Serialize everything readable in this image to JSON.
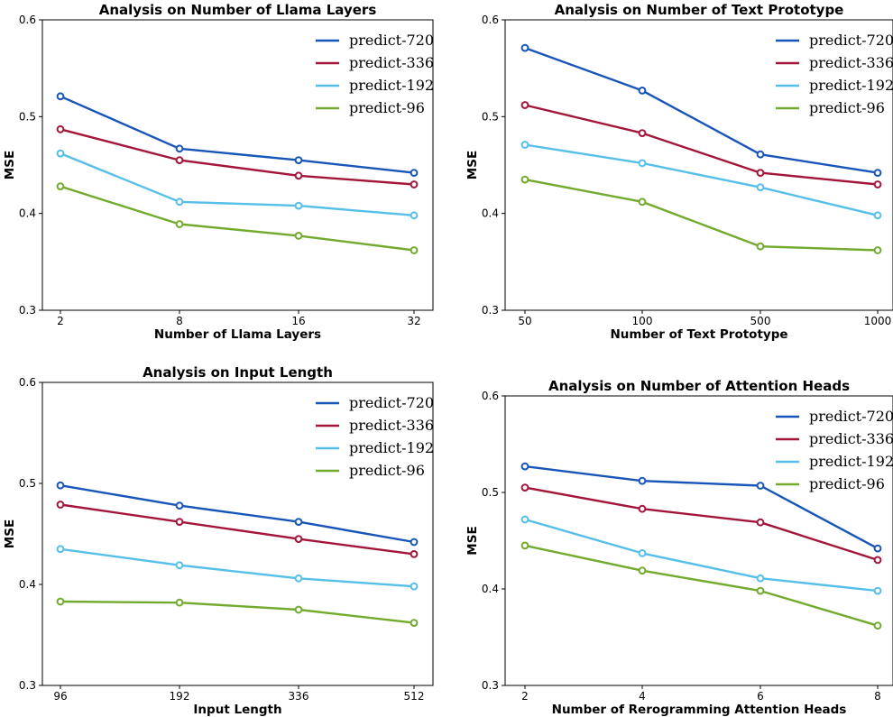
{
  "colors": {
    "predict-720": "#1756b8",
    "predict-336": "#a3163a",
    "predict-192": "#55bfe9",
    "predict-96": "#72aa2e"
  },
  "chart_data": [
    {
      "type": "line",
      "title": "Analysis on Number of Llama Layers",
      "xlabel": "Number of Llama Layers",
      "ylabel": "MSE",
      "categories": [
        "2",
        "8",
        "16",
        "32"
      ],
      "yticks": [
        "0.3",
        "0.4",
        "0.5",
        "0.6"
      ],
      "ylim": [
        0.3,
        0.6
      ],
      "grid": false,
      "legend": "top-right",
      "series": [
        {
          "name": "predict-720",
          "values": [
            0.521,
            0.467,
            0.455,
            0.442
          ]
        },
        {
          "name": "predict-336",
          "values": [
            0.487,
            0.455,
            0.439,
            0.43
          ]
        },
        {
          "name": "predict-192",
          "values": [
            0.462,
            0.412,
            0.408,
            0.398
          ]
        },
        {
          "name": "predict-96",
          "values": [
            0.428,
            0.389,
            0.377,
            0.362
          ]
        }
      ]
    },
    {
      "type": "line",
      "title": "Analysis on Number of Text Prototype",
      "xlabel": "Number of Text Prototype",
      "ylabel": "MSE",
      "categories": [
        "50",
        "100",
        "500",
        "1000"
      ],
      "yticks": [
        "0.3",
        "0.4",
        "0.5",
        "0.6"
      ],
      "ylim": [
        0.3,
        0.6
      ],
      "grid": false,
      "legend": "top-right",
      "series": [
        {
          "name": "predict-720",
          "values": [
            0.571,
            0.527,
            0.461,
            0.442
          ]
        },
        {
          "name": "predict-336",
          "values": [
            0.512,
            0.483,
            0.442,
            0.43
          ]
        },
        {
          "name": "predict-192",
          "values": [
            0.471,
            0.452,
            0.427,
            0.398
          ]
        },
        {
          "name": "predict-96",
          "values": [
            0.435,
            0.412,
            0.366,
            0.362
          ]
        }
      ]
    },
    {
      "type": "line",
      "title": "Analysis on Input Length",
      "xlabel": "Input Length",
      "ylabel": "MSE",
      "categories": [
        "96",
        "192",
        "336",
        "512"
      ],
      "yticks": [
        "0.3",
        "0.4",
        "0.5",
        "0.6"
      ],
      "ylim": [
        0.3,
        0.6
      ],
      "grid": false,
      "legend": "top-right",
      "series": [
        {
          "name": "predict-720",
          "values": [
            0.498,
            0.478,
            0.462,
            0.442
          ]
        },
        {
          "name": "predict-336",
          "values": [
            0.479,
            0.462,
            0.445,
            0.43
          ]
        },
        {
          "name": "predict-192",
          "values": [
            0.435,
            0.419,
            0.406,
            0.398
          ]
        },
        {
          "name": "predict-96",
          "values": [
            0.383,
            0.382,
            0.375,
            0.362
          ]
        }
      ]
    },
    {
      "type": "line",
      "title": "Analysis on Number of Attention Heads",
      "xlabel": "Number of Rerogramming Attention Heads",
      "ylabel": "MSE",
      "categories": [
        "2",
        "4",
        "6",
        "8"
      ],
      "yticks": [
        "0.3",
        "0.4",
        "0.5",
        "0.6"
      ],
      "ylim": [
        0.3,
        0.6
      ],
      "grid": false,
      "legend": "top-right",
      "series": [
        {
          "name": "predict-720",
          "values": [
            0.527,
            0.512,
            0.507,
            0.442
          ]
        },
        {
          "name": "predict-336",
          "values": [
            0.505,
            0.483,
            0.469,
            0.43
          ]
        },
        {
          "name": "predict-192",
          "values": [
            0.472,
            0.437,
            0.411,
            0.398
          ]
        },
        {
          "name": "predict-96",
          "values": [
            0.445,
            0.419,
            0.398,
            0.362
          ]
        }
      ]
    }
  ]
}
